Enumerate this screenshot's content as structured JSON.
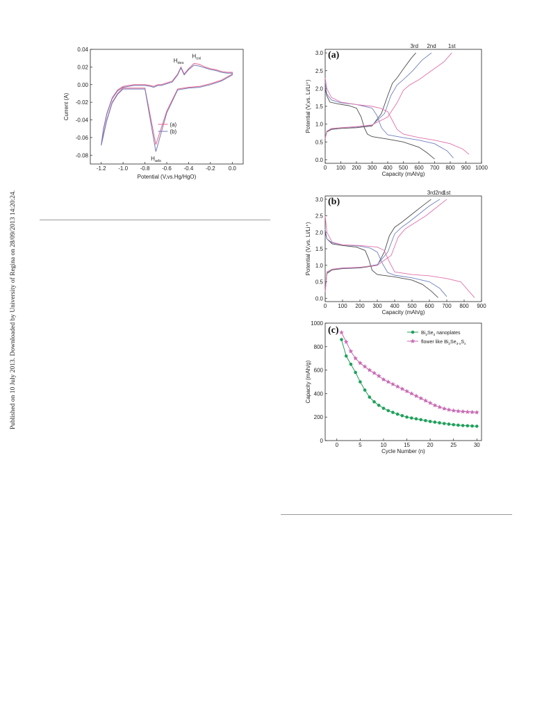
{
  "side_note": "Published on 10 July 2013. Downloaded by University of Regina on 28/09/2013 14:20:24.",
  "colors": {
    "a": "#e8628b",
    "b": "#6e7ab6",
    "third": "#4a4a4a",
    "second": "#7080c0",
    "first": "#e070a8",
    "green": "#1ea05a",
    "pink": "#c86ab4"
  },
  "chart_data": [
    {
      "type": "line",
      "xlabel": "Potential (V,vs.Hg/HgO)",
      "ylabel": "Current (A)",
      "xlim": [
        -1.3,
        0.1
      ],
      "ylim": [
        -0.09,
        0.04
      ],
      "xticks": [
        "-1.2",
        "-1.0",
        "-0.8",
        "-0.6",
        "-0.4",
        "-0.2",
        "0.0"
      ],
      "yticks": [
        "-0.08",
        "-0.06",
        "-0.04",
        "-0.02",
        "0.00",
        "0.02",
        "0.04"
      ],
      "annotations": {
        "hdes": "H",
        "hdes_sub": "des",
        "hoxi": "H",
        "hoxi_sub": "oxi",
        "hads": "H",
        "hads_sub": "ads"
      },
      "legend": [
        "(a)",
        "(b)"
      ],
      "series": [
        {
          "name": "(a)",
          "x": [
            -1.2,
            -1.18,
            -1.15,
            -1.1,
            -1.05,
            -1.0,
            -0.95,
            -0.9,
            -0.8,
            -0.75,
            -0.72,
            -0.7,
            -0.68,
            -0.65,
            -0.6,
            -0.55,
            -0.5,
            -0.47,
            -0.44,
            -0.4,
            -0.35,
            -0.3,
            -0.25,
            -0.2,
            -0.15,
            -0.1,
            -0.05,
            0.0,
            0.0,
            -0.1,
            -0.2,
            -0.3,
            -0.4,
            -0.5,
            -0.6,
            -0.7,
            -0.8,
            -0.9,
            -1.0,
            -1.05,
            -1.1,
            -1.15,
            -1.2
          ],
          "y": [
            -0.068,
            -0.05,
            -0.033,
            -0.015,
            -0.006,
            -0.002,
            -0.001,
            0.0,
            0.0,
            -0.001,
            -0.002,
            -0.001,
            0.0,
            0.0,
            0.002,
            0.004,
            0.012,
            0.02,
            0.012,
            0.018,
            0.024,
            0.023,
            0.02,
            0.018,
            0.017,
            0.015,
            0.014,
            0.014,
            0.012,
            0.005,
            0.001,
            -0.002,
            -0.003,
            -0.005,
            -0.03,
            -0.068,
            -0.004,
            -0.004,
            -0.004,
            -0.01,
            -0.02,
            -0.04,
            -0.068
          ]
        },
        {
          "name": "(b)",
          "x": [
            -1.2,
            -1.18,
            -1.15,
            -1.1,
            -1.05,
            -1.0,
            -0.95,
            -0.9,
            -0.8,
            -0.75,
            -0.72,
            -0.7,
            -0.68,
            -0.65,
            -0.6,
            -0.55,
            -0.5,
            -0.47,
            -0.44,
            -0.4,
            -0.35,
            -0.3,
            -0.25,
            -0.2,
            -0.15,
            -0.1,
            -0.05,
            0.0,
            0.0,
            -0.1,
            -0.2,
            -0.3,
            -0.4,
            -0.5,
            -0.6,
            -0.7,
            -0.8,
            -0.9,
            -1.0,
            -1.05,
            -1.1,
            -1.15,
            -1.2
          ],
          "y": [
            -0.069,
            -0.051,
            -0.034,
            -0.016,
            -0.007,
            -0.003,
            -0.002,
            -0.001,
            -0.001,
            -0.002,
            -0.003,
            -0.002,
            -0.001,
            -0.001,
            0.001,
            0.003,
            0.011,
            0.019,
            0.011,
            0.017,
            0.022,
            0.021,
            0.019,
            0.017,
            0.016,
            0.014,
            0.013,
            0.013,
            0.011,
            0.004,
            0.0,
            -0.003,
            -0.004,
            -0.006,
            -0.032,
            -0.076,
            -0.005,
            -0.005,
            -0.005,
            -0.011,
            -0.021,
            -0.041,
            -0.069
          ]
        }
      ]
    },
    {
      "type": "line",
      "panel": "(a)",
      "xlabel": "Capacity (mAh/g)",
      "ylabel": "Potential (V,vs. Li/Li⁺)",
      "xlim": [
        0,
        1000
      ],
      "ylim": [
        -0.1,
        3.1
      ],
      "xticks": [
        "0",
        "100",
        "200",
        "300",
        "400",
        "500",
        "600",
        "700",
        "800",
        "900",
        "1000"
      ],
      "yticks": [
        "0.0",
        "0.5",
        "1.0",
        "1.5",
        "2.0",
        "2.5",
        "3.0"
      ],
      "cycle_labels": [
        "3rd",
        "2nd",
        "1st"
      ],
      "series": [
        {
          "name": "3rd",
          "discharge": {
            "x": [
              0,
              10,
              30,
              80,
              150,
              200,
              230,
              250,
              270,
              300,
              400,
              500,
              600,
              650,
              700
            ],
            "y": [
              2.0,
              1.8,
              1.62,
              1.57,
              1.52,
              1.45,
              1.2,
              0.9,
              0.72,
              0.65,
              0.58,
              0.5,
              0.35,
              0.2,
              0.02
            ]
          },
          "charge": {
            "x": [
              0,
              10,
              40,
              100,
              200,
              300,
              360,
              400,
              430,
              460,
              500,
              550,
              580
            ],
            "y": [
              0.6,
              0.78,
              0.85,
              0.88,
              0.9,
              0.95,
              1.3,
              1.8,
              2.15,
              2.3,
              2.55,
              2.85,
              3.0
            ]
          }
        },
        {
          "name": "2nd",
          "discharge": {
            "x": [
              0,
              10,
              40,
              100,
              200,
              250,
              300,
              330,
              360,
              400,
              500,
              600,
              700,
              780,
              820
            ],
            "y": [
              2.2,
              1.85,
              1.68,
              1.6,
              1.55,
              1.5,
              1.45,
              1.25,
              0.9,
              0.7,
              0.62,
              0.55,
              0.45,
              0.25,
              0.05
            ]
          },
          "charge": {
            "x": [
              0,
              10,
              40,
              100,
              200,
              300,
              380,
              420,
              460,
              500,
              560,
              620,
              680
            ],
            "y": [
              0.6,
              0.8,
              0.87,
              0.9,
              0.92,
              0.97,
              1.3,
              1.8,
              2.1,
              2.25,
              2.5,
              2.8,
              3.0
            ]
          }
        },
        {
          "name": "1st",
          "discharge": {
            "x": [
              0,
              10,
              40,
              100,
              200,
              300,
              350,
              400,
              430,
              460,
              500,
              600,
              700,
              800,
              880,
              920
            ],
            "y": [
              2.3,
              2.0,
              1.75,
              1.62,
              1.55,
              1.5,
              1.45,
              1.35,
              1.1,
              0.85,
              0.72,
              0.62,
              0.55,
              0.45,
              0.3,
              0.15
            ]
          },
          "charge": {
            "x": [
              0,
              10,
              40,
              100,
              200,
              300,
              400,
              460,
              500,
              540,
              600,
              680,
              760,
              810
            ],
            "y": [
              0.6,
              0.8,
              0.88,
              0.9,
              0.93,
              0.98,
              1.2,
              1.6,
              1.95,
              2.1,
              2.25,
              2.5,
              2.75,
              3.0
            ]
          }
        }
      ]
    },
    {
      "type": "line",
      "panel": "(b)",
      "xlabel": "Capacity (mAh/g)",
      "ylabel": "Potential (V,vs. Li/Li⁺)",
      "xlim": [
        0,
        900
      ],
      "ylim": [
        -0.1,
        3.1
      ],
      "xticks": [
        "0",
        "100",
        "200",
        "300",
        "400",
        "500",
        "600",
        "700",
        "800",
        "900"
      ],
      "yticks": [
        "0.0",
        "0.5",
        "1.0",
        "1.5",
        "2.0",
        "2.5",
        "3.0"
      ],
      "cycle_labels": [
        "3rd",
        "2nd",
        "1st"
      ],
      "series": [
        {
          "name": "3rd",
          "discharge": {
            "x": [
              0,
              10,
              40,
              100,
              180,
              230,
              250,
              270,
              300,
              400,
              500,
              560,
              610,
              650
            ],
            "y": [
              2.0,
              1.8,
              1.65,
              1.6,
              1.55,
              1.45,
              1.2,
              0.85,
              0.72,
              0.65,
              0.55,
              0.42,
              0.22,
              0.02
            ]
          },
          "charge": {
            "x": [
              0,
              10,
              40,
              100,
              200,
              300,
              340,
              370,
              400,
              440,
              500,
              560,
              610
            ],
            "y": [
              0.2,
              0.75,
              0.86,
              0.9,
              0.92,
              1.0,
              1.4,
              1.9,
              2.15,
              2.3,
              2.55,
              2.8,
              3.0
            ]
          }
        },
        {
          "name": "2nd",
          "discharge": {
            "x": [
              0,
              10,
              40,
              100,
              200,
              260,
              300,
              330,
              360,
              400,
              500,
              600,
              660,
              700
            ],
            "y": [
              2.1,
              1.8,
              1.68,
              1.62,
              1.58,
              1.52,
              1.4,
              1.05,
              0.78,
              0.7,
              0.62,
              0.5,
              0.3,
              0.05
            ]
          },
          "charge": {
            "x": [
              0,
              10,
              40,
              100,
              200,
              300,
              360,
              400,
              440,
              480,
              540,
              600,
              660
            ],
            "y": [
              0.2,
              0.78,
              0.88,
              0.91,
              0.93,
              1.02,
              1.4,
              1.95,
              2.15,
              2.3,
              2.55,
              2.8,
              3.0
            ]
          }
        },
        {
          "name": "1st",
          "discharge": {
            "x": [
              0,
              10,
              40,
              100,
              200,
              300,
              340,
              370,
              400,
              500,
              600,
              700,
              780,
              830,
              860
            ],
            "y": [
              2.5,
              2.0,
              1.7,
              1.62,
              1.6,
              1.55,
              1.45,
              1.1,
              0.8,
              0.72,
              0.68,
              0.6,
              0.5,
              0.2,
              0.02
            ]
          },
          "charge": {
            "x": [
              0,
              10,
              40,
              100,
              200,
              300,
              380,
              420,
              460,
              520,
              580,
              640,
              700
            ],
            "y": [
              0.2,
              0.8,
              0.88,
              0.92,
              0.94,
              1.0,
              1.3,
              1.85,
              2.1,
              2.3,
              2.5,
              2.75,
              3.0
            ]
          }
        }
      ]
    },
    {
      "type": "line",
      "panel": "(c)",
      "xlabel": "Cycle Number (n)",
      "ylabel": "Capacity (mAh/g)",
      "xlim": [
        -2.5,
        31
      ],
      "ylim": [
        0,
        1000
      ],
      "xticks": [
        "0",
        "5",
        "10",
        "15",
        "20",
        "25",
        "30"
      ],
      "yticks": [
        "0",
        "200",
        "400",
        "600",
        "800",
        "1000"
      ],
      "legend": [
        {
          "parts": [
            "Bi",
            "2",
            "Se",
            "3",
            " nanoplates"
          ]
        },
        {
          "parts": [
            "flower like Bi",
            "2",
            "Se",
            "3-x",
            "S",
            "x"
          ]
        }
      ],
      "series": [
        {
          "name": "Bi2Se3 nanoplates",
          "marker": "circle",
          "x": [
            1,
            2,
            3,
            4,
            5,
            6,
            7,
            8,
            9,
            10,
            11,
            12,
            13,
            14,
            15,
            16,
            17,
            18,
            19,
            20,
            21,
            22,
            23,
            24,
            25,
            26,
            27,
            28,
            29,
            30
          ],
          "y": [
            860,
            720,
            650,
            580,
            500,
            430,
            370,
            330,
            300,
            275,
            255,
            240,
            225,
            212,
            200,
            192,
            185,
            178,
            170,
            163,
            157,
            151,
            145,
            140,
            135,
            131,
            128,
            126,
            124,
            122
          ]
        },
        {
          "name": "flower like Bi2Se3-xSx",
          "marker": "star",
          "x": [
            1,
            2,
            3,
            4,
            5,
            6,
            7,
            8,
            9,
            10,
            11,
            12,
            13,
            14,
            15,
            16,
            17,
            18,
            19,
            20,
            21,
            22,
            23,
            24,
            25,
            26,
            27,
            28,
            29,
            30
          ],
          "y": [
            920,
            840,
            760,
            700,
            660,
            630,
            600,
            575,
            550,
            520,
            500,
            480,
            460,
            440,
            420,
            400,
            380,
            360,
            340,
            320,
            300,
            285,
            272,
            262,
            255,
            250,
            247,
            244,
            242,
            240
          ]
        }
      ]
    }
  ]
}
